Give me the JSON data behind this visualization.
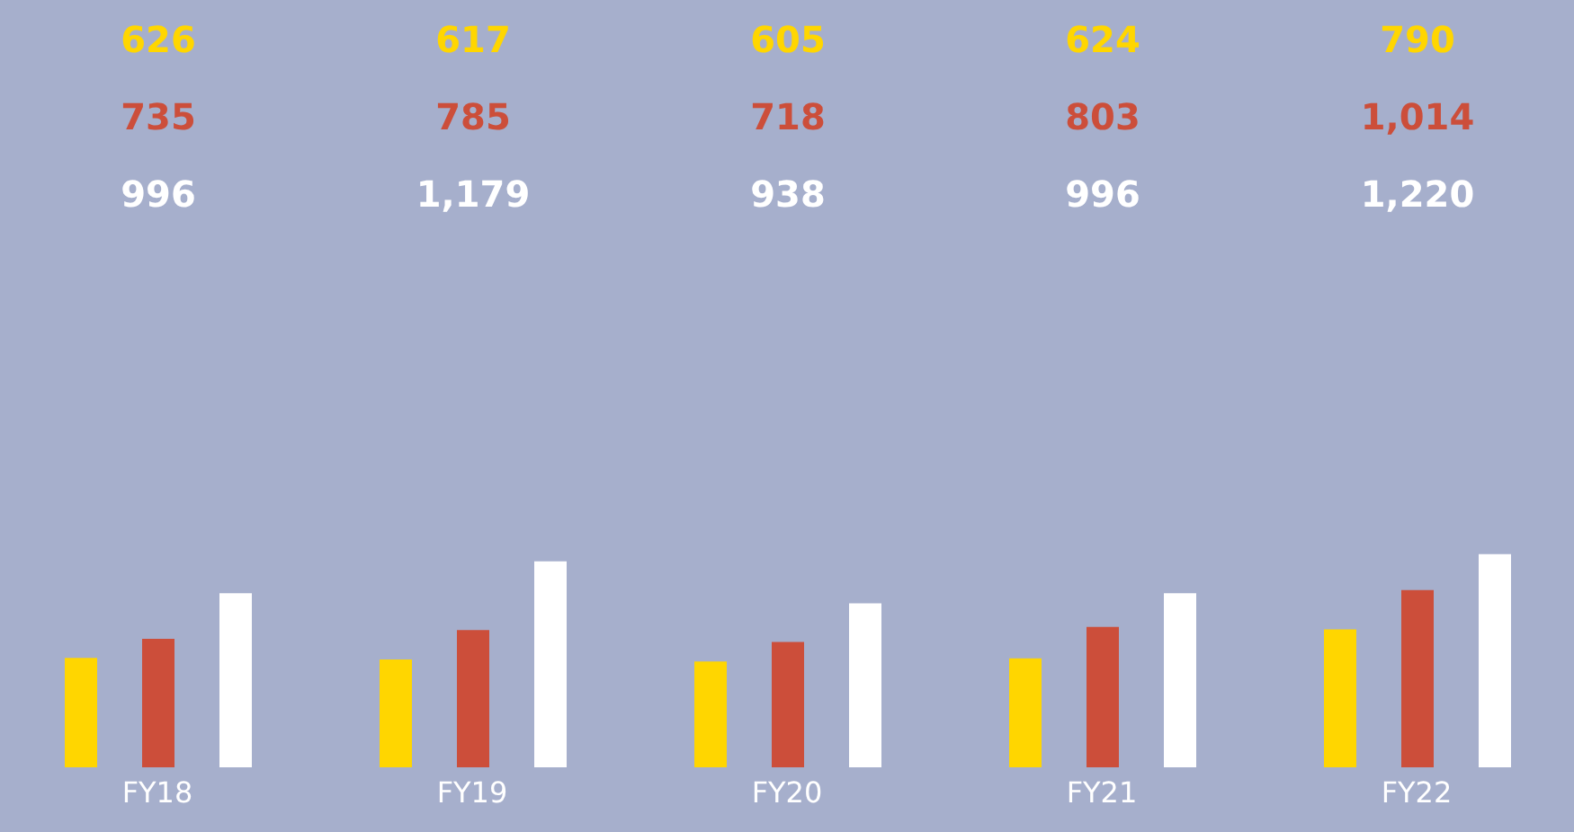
{
  "chart_data": {
    "type": "bar",
    "categories": [
      "FY18",
      "FY19",
      "FY20",
      "FY21",
      "FY22"
    ],
    "series": [
      {
        "color": "#ffd600",
        "values": [
          626,
          617,
          605,
          624,
          790
        ],
        "value_labels": [
          "626",
          "617",
          "605",
          "624",
          "790"
        ]
      },
      {
        "color": "#cc4e3a",
        "values": [
          735,
          785,
          718,
          803,
          1014
        ],
        "value_labels": [
          "735",
          "785",
          "718",
          "803",
          "1,014"
        ]
      },
      {
        "color": "#ffffff",
        "values": [
          996,
          1179,
          938,
          996,
          1220
        ],
        "value_labels": [
          "996",
          "1,179",
          "938",
          "996",
          "1,220"
        ]
      }
    ],
    "grid": false,
    "legend": false
  }
}
